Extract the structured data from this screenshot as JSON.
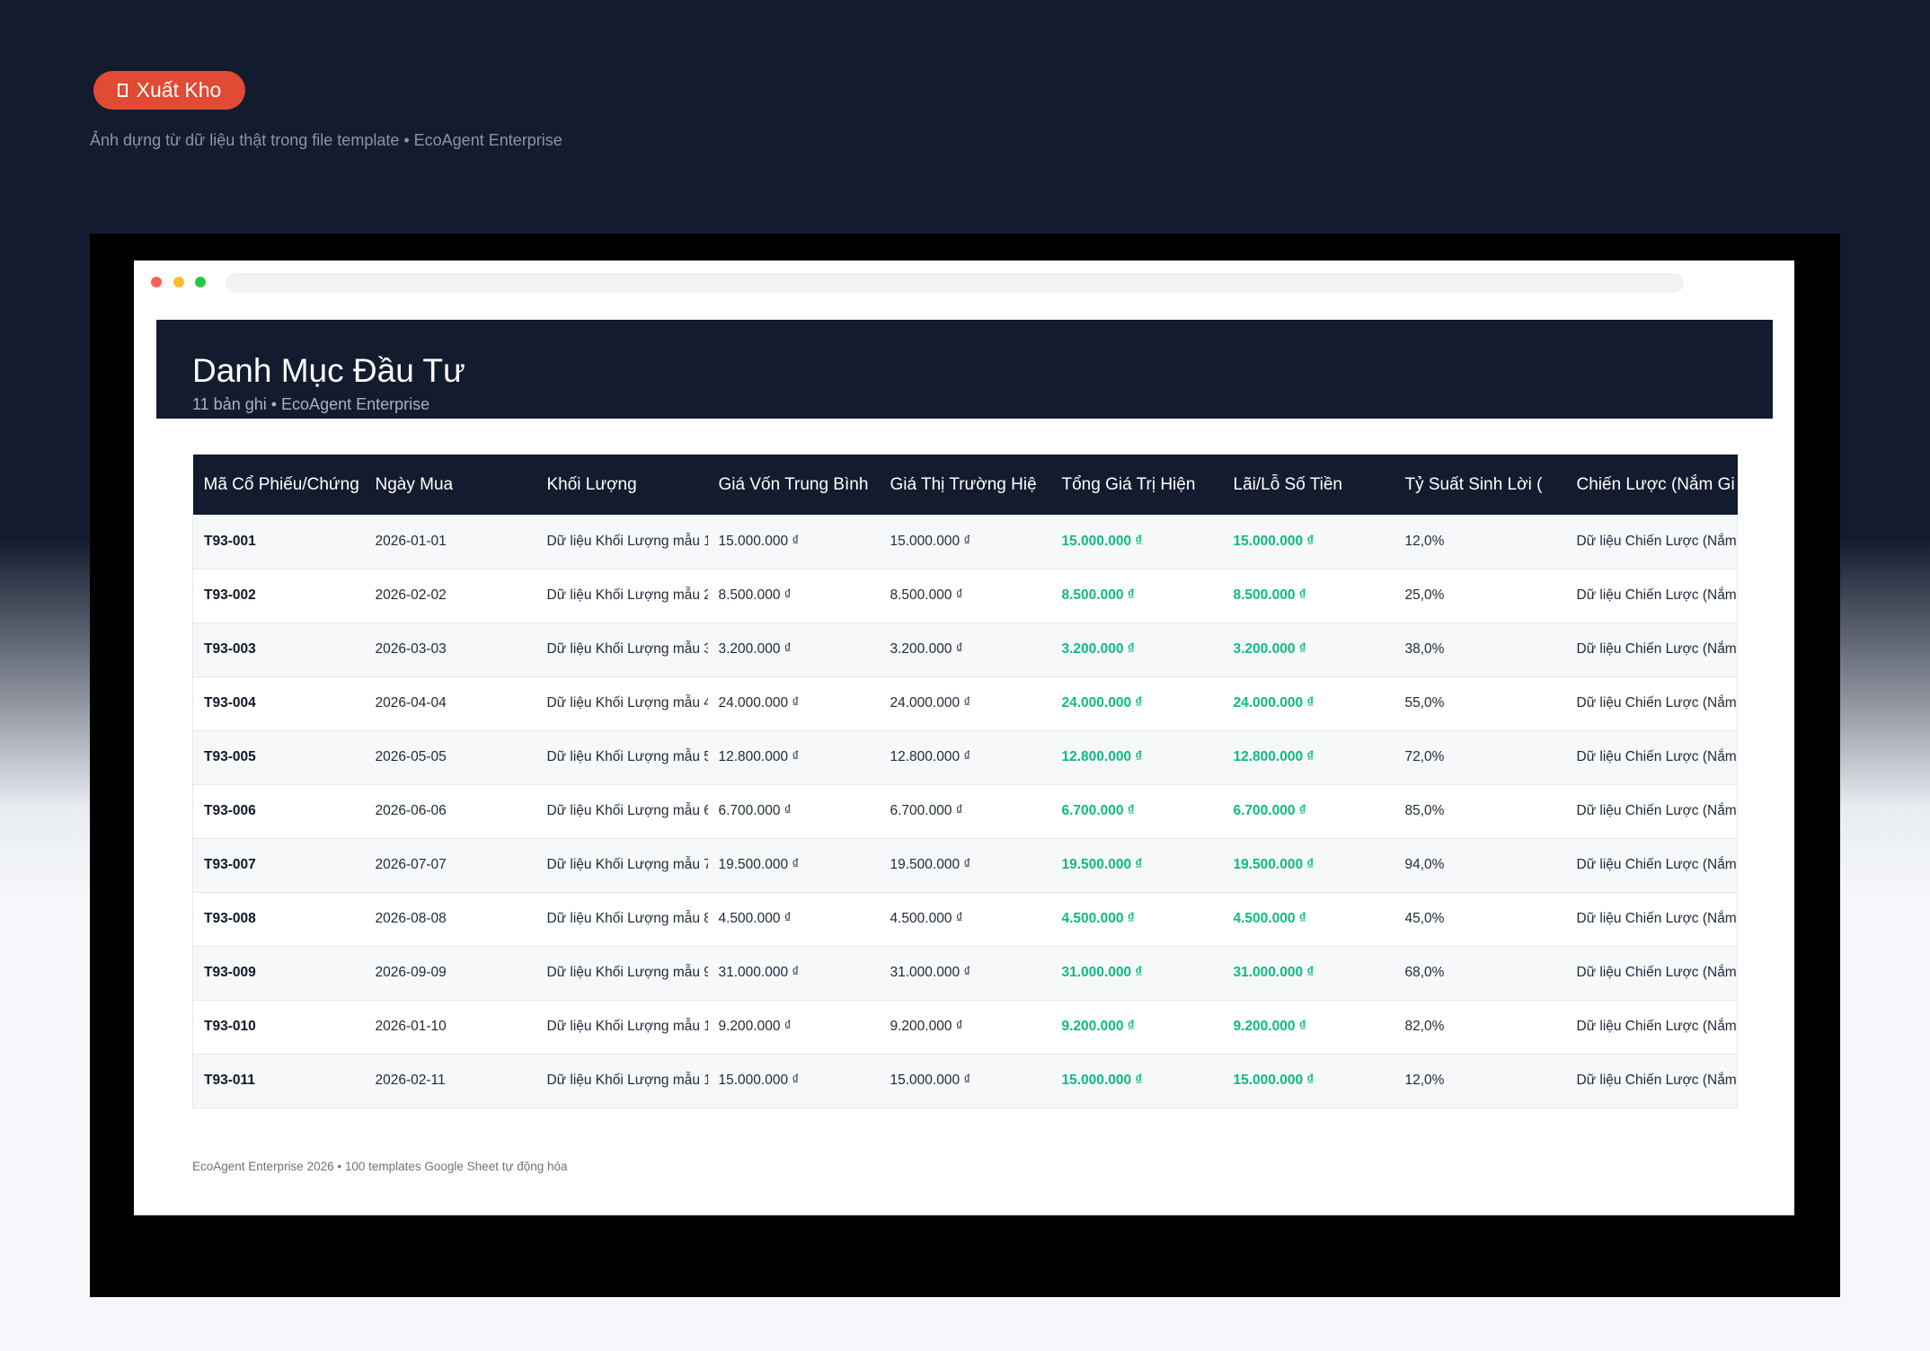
{
  "badge": "Xuất Kho",
  "caption": "Ảnh dựng từ dữ liệu thật trong file template • EcoAgent Enterprise",
  "header": {
    "title": "Danh Mục Đầu Tư",
    "subtitle": "11 bản ghi • EcoAgent Enterprise"
  },
  "table": {
    "columns": [
      "Mã Cổ Phiếu/Chứng",
      "Ngày Mua",
      "Khối Lượng",
      "Giá Vốn Trung Bình",
      "Giá Thị Trường Hiệ",
      "Tổng Giá Trị Hiện",
      "Lãi/Lỗ Số Tiền",
      "Tỷ Suất Sinh Lời (",
      "Chiến Lược (Nắm Gi"
    ],
    "rows": [
      [
        "T93-001",
        "2026-01-01",
        "Dữ liệu Khối Lượng mẫu 1",
        "15.000.000 ₫",
        "15.000.000 ₫",
        "15.000.000 ₫",
        "15.000.000 ₫",
        "12,0%",
        "Dữ liệu Chiến Lược (Nắm"
      ],
      [
        "T93-002",
        "2026-02-02",
        "Dữ liệu Khối Lượng mẫu 2",
        "8.500.000 ₫",
        "8.500.000 ₫",
        "8.500.000 ₫",
        "8.500.000 ₫",
        "25,0%",
        "Dữ liệu Chiến Lược (Nắm"
      ],
      [
        "T93-003",
        "2026-03-03",
        "Dữ liệu Khối Lượng mẫu 3",
        "3.200.000 ₫",
        "3.200.000 ₫",
        "3.200.000 ₫",
        "3.200.000 ₫",
        "38,0%",
        "Dữ liệu Chiến Lược (Nắm"
      ],
      [
        "T93-004",
        "2026-04-04",
        "Dữ liệu Khối Lượng mẫu 4",
        "24.000.000 ₫",
        "24.000.000 ₫",
        "24.000.000 ₫",
        "24.000.000 ₫",
        "55,0%",
        "Dữ liệu Chiến Lược (Nắm"
      ],
      [
        "T93-005",
        "2026-05-05",
        "Dữ liệu Khối Lượng mẫu 5",
        "12.800.000 ₫",
        "12.800.000 ₫",
        "12.800.000 ₫",
        "12.800.000 ₫",
        "72,0%",
        "Dữ liệu Chiến Lược (Nắm"
      ],
      [
        "T93-006",
        "2026-06-06",
        "Dữ liệu Khối Lượng mẫu 6",
        "6.700.000 ₫",
        "6.700.000 ₫",
        "6.700.000 ₫",
        "6.700.000 ₫",
        "85,0%",
        "Dữ liệu Chiến Lược (Nắm"
      ],
      [
        "T93-007",
        "2026-07-07",
        "Dữ liệu Khối Lượng mẫu 7",
        "19.500.000 ₫",
        "19.500.000 ₫",
        "19.500.000 ₫",
        "19.500.000 ₫",
        "94,0%",
        "Dữ liệu Chiến Lược (Nắm"
      ],
      [
        "T93-008",
        "2026-08-08",
        "Dữ liệu Khối Lượng mẫu 8",
        "4.500.000 ₫",
        "4.500.000 ₫",
        "4.500.000 ₫",
        "4.500.000 ₫",
        "45,0%",
        "Dữ liệu Chiến Lược (Nắm"
      ],
      [
        "T93-009",
        "2026-09-09",
        "Dữ liệu Khối Lượng mẫu 9",
        "31.000.000 ₫",
        "31.000.000 ₫",
        "31.000.000 ₫",
        "31.000.000 ₫",
        "68,0%",
        "Dữ liệu Chiến Lược (Nắm"
      ],
      [
        "T93-010",
        "2026-01-10",
        "Dữ liệu Khối Lượng mẫu 1",
        "9.200.000 ₫",
        "9.200.000 ₫",
        "9.200.000 ₫",
        "9.200.000 ₫",
        "82,0%",
        "Dữ liệu Chiến Lược (Nắm"
      ],
      [
        "T93-011",
        "2026-02-11",
        "Dữ liệu Khối Lượng mẫu 1",
        "15.000.000 ₫",
        "15.000.000 ₫",
        "15.000.000 ₫",
        "15.000.000 ₫",
        "12,0%",
        "Dữ liệu Chiến Lược (Nắm"
      ]
    ]
  },
  "footer": "EcoAgent Enterprise 2026 • 100 templates Google Sheet tự động hóa"
}
